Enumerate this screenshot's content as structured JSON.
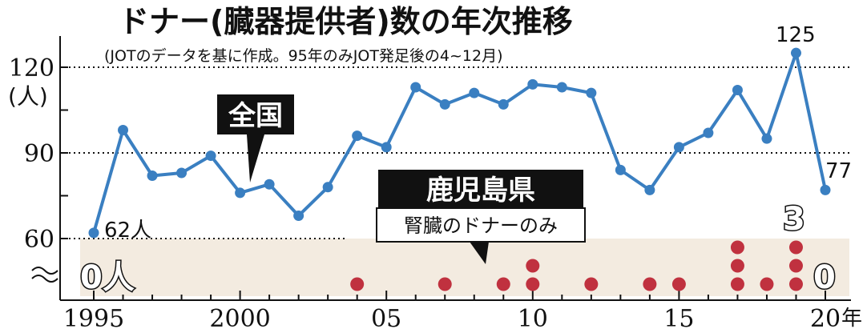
{
  "title": "ドナー(臓器提供者)数の年次推移",
  "subtitle": "(JOTのデータを基に作成。95年のみJOT発足後の4~12月)",
  "y_unit": "(人)",
  "x_unit": "年",
  "national_label": "全国",
  "kagoshima_label": "鹿児島県",
  "kagoshima_sublabel": "腎臓のドナーのみ",
  "annotations": {
    "first": "62人",
    "peak": "125",
    "last": "77",
    "kg_first": "0人",
    "kg_peak": "3",
    "kg_last": "0"
  },
  "colors": {
    "national_line": "#3a7fc1",
    "kagoshima_dot": "#c0313f",
    "band": "#f3ebe0"
  },
  "chart_data": {
    "type": "line",
    "x": [
      1995,
      1996,
      1997,
      1998,
      1999,
      2000,
      2001,
      2002,
      2003,
      2004,
      2005,
      2006,
      2007,
      2008,
      2009,
      2010,
      2011,
      2012,
      2013,
      2014,
      2015,
      2016,
      2017,
      2018,
      2019,
      2020
    ],
    "series": [
      {
        "name": "全国",
        "values": [
          62,
          98,
          82,
          83,
          89,
          76,
          79,
          68,
          78,
          96,
          92,
          113,
          107,
          111,
          107,
          114,
          113,
          111,
          84,
          77,
          92,
          97,
          112,
          95,
          125,
          77
        ]
      },
      {
        "name": "鹿児島県",
        "values": [
          0,
          0,
          0,
          0,
          0,
          0,
          0,
          0,
          0,
          1,
          0,
          0,
          1,
          0,
          1,
          2,
          0,
          1,
          0,
          1,
          1,
          0,
          3,
          1,
          3,
          0
        ]
      }
    ],
    "yticks": [
      60,
      90,
      120
    ],
    "xtick_labels": [
      {
        "x": 1995,
        "label": "1995"
      },
      {
        "x": 2000,
        "label": "2000"
      },
      {
        "x": 2005,
        "label": "05"
      },
      {
        "x": 2010,
        "label": "10"
      },
      {
        "x": 2015,
        "label": "15"
      },
      {
        "x": 2020,
        "label": "20"
      }
    ]
  }
}
